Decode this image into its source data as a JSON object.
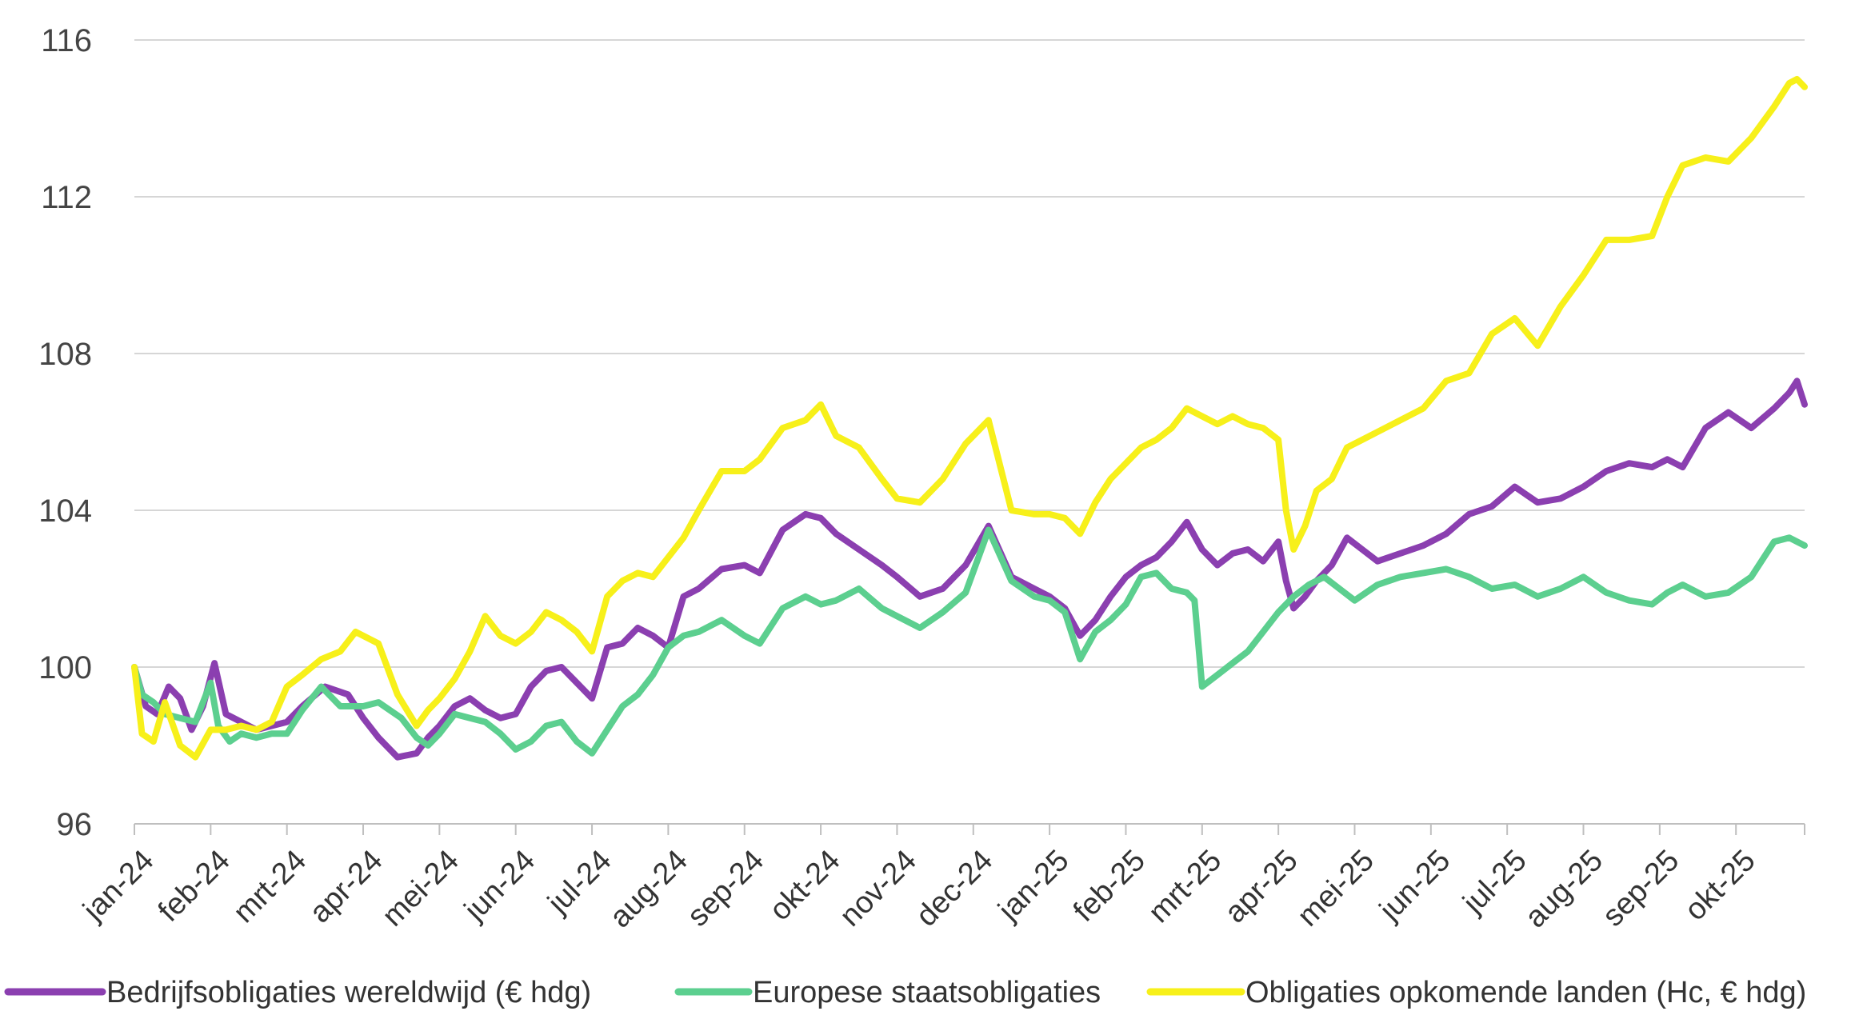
{
  "chart_data": {
    "type": "line",
    "title": "",
    "xlabel": "",
    "ylabel": "",
    "ylim": [
      96,
      116
    ],
    "yticks": [
      96,
      100,
      104,
      108,
      112,
      116
    ],
    "grid": true,
    "legend_position": "bottom",
    "categories": [
      "jan-24",
      "feb-24",
      "mrt-24",
      "apr-24",
      "mei-24",
      "jun-24",
      "jul-24",
      "aug-24",
      "sep-24",
      "okt-24",
      "nov-24",
      "dec-24",
      "jan-25",
      "feb-25",
      "mrt-25",
      "apr-25",
      "mei-25",
      "jun-25",
      "jul-25",
      "aug-25",
      "sep-25",
      "okt-25"
    ],
    "x_end": 21.9,
    "series": [
      {
        "name": "Bedrijfsobligaties wereldwijd (€ hdg)",
        "color": "#8b3fb0",
        "x": [
          0,
          0.15,
          0.3,
          0.45,
          0.6,
          0.75,
          0.9,
          1.05,
          1.2,
          1.4,
          1.6,
          1.8,
          2.0,
          2.2,
          2.5,
          2.8,
          3.0,
          3.2,
          3.45,
          3.7,
          3.85,
          4.0,
          4.2,
          4.4,
          4.6,
          4.8,
          5.0,
          5.2,
          5.4,
          5.6,
          5.8,
          6.0,
          6.2,
          6.4,
          6.6,
          6.8,
          7.0,
          7.2,
          7.4,
          7.7,
          8.0,
          8.2,
          8.5,
          8.8,
          9.0,
          9.2,
          9.5,
          9.8,
          10.0,
          10.3,
          10.6,
          10.9,
          11.2,
          11.5,
          11.8,
          12.0,
          12.2,
          12.4,
          12.6,
          12.8,
          13.0,
          13.2,
          13.4,
          13.6,
          13.8,
          14.0,
          14.2,
          14.4,
          14.6,
          14.8,
          15.0,
          15.1,
          15.2,
          15.35,
          15.5,
          15.7,
          15.9,
          16.1,
          16.3,
          16.6,
          16.9,
          17.2,
          17.5,
          17.8,
          18.1,
          18.4,
          18.7,
          19.0,
          19.3,
          19.6,
          19.9,
          20.1,
          20.3,
          20.6,
          20.9,
          21.2,
          21.5,
          21.7,
          21.8,
          21.9
        ],
        "values": [
          100.0,
          99.0,
          98.8,
          99.5,
          99.2,
          98.4,
          99.0,
          100.1,
          98.8,
          98.6,
          98.4,
          98.5,
          98.6,
          99.0,
          99.5,
          99.3,
          98.7,
          98.2,
          97.7,
          97.8,
          98.2,
          98.5,
          99.0,
          99.2,
          98.9,
          98.7,
          98.8,
          99.5,
          99.9,
          100.0,
          99.6,
          99.2,
          100.5,
          100.6,
          101.0,
          100.8,
          100.5,
          101.8,
          102.0,
          102.5,
          102.6,
          102.4,
          103.5,
          103.9,
          103.8,
          103.4,
          103.0,
          102.6,
          102.3,
          101.8,
          102.0,
          102.6,
          103.6,
          102.3,
          102.0,
          101.8,
          101.5,
          100.8,
          101.2,
          101.8,
          102.3,
          102.6,
          102.8,
          103.2,
          103.7,
          103.0,
          102.6,
          102.9,
          103.0,
          102.7,
          103.2,
          102.2,
          101.5,
          101.8,
          102.2,
          102.6,
          103.3,
          103.0,
          102.7,
          102.9,
          103.1,
          103.4,
          103.9,
          104.1,
          104.6,
          104.2,
          104.3,
          104.6,
          105.0,
          105.2,
          105.1,
          105.3,
          105.1,
          106.1,
          106.5,
          106.1,
          106.6,
          107.0,
          107.3,
          106.7
        ]
      },
      {
        "name": "Europese staatsobligaties",
        "color": "#5ccf8f",
        "x": [
          0,
          0.1,
          0.25,
          0.4,
          0.6,
          0.8,
          1.0,
          1.1,
          1.25,
          1.4,
          1.6,
          1.8,
          2.0,
          2.2,
          2.45,
          2.7,
          3.0,
          3.2,
          3.5,
          3.7,
          3.85,
          4.0,
          4.2,
          4.4,
          4.6,
          4.8,
          5.0,
          5.2,
          5.4,
          5.6,
          5.8,
          6.0,
          6.2,
          6.4,
          6.6,
          6.8,
          7.0,
          7.2,
          7.4,
          7.7,
          8.0,
          8.2,
          8.5,
          8.8,
          9.0,
          9.2,
          9.5,
          9.8,
          10.0,
          10.3,
          10.6,
          10.9,
          11.2,
          11.5,
          11.8,
          12.0,
          12.2,
          12.4,
          12.6,
          12.8,
          13.0,
          13.2,
          13.4,
          13.6,
          13.8,
          13.9,
          14.0,
          14.2,
          14.4,
          14.6,
          14.8,
          15.0,
          15.2,
          15.4,
          15.6,
          15.8,
          16.0,
          16.3,
          16.6,
          16.9,
          17.2,
          17.5,
          17.8,
          18.1,
          18.4,
          18.7,
          19.0,
          19.3,
          19.6,
          19.9,
          20.1,
          20.3,
          20.6,
          20.9,
          21.2,
          21.5,
          21.7,
          21.9
        ],
        "values": [
          100.0,
          99.3,
          99.1,
          98.8,
          98.7,
          98.6,
          99.6,
          98.5,
          98.1,
          98.3,
          98.2,
          98.3,
          98.3,
          98.9,
          99.5,
          99.0,
          99.0,
          99.1,
          98.7,
          98.2,
          98.0,
          98.3,
          98.8,
          98.7,
          98.6,
          98.3,
          97.9,
          98.1,
          98.5,
          98.6,
          98.1,
          97.8,
          98.4,
          99.0,
          99.3,
          99.8,
          100.5,
          100.8,
          100.9,
          101.2,
          100.8,
          100.6,
          101.5,
          101.8,
          101.6,
          101.7,
          102.0,
          101.5,
          101.3,
          101.0,
          101.4,
          101.9,
          103.5,
          102.2,
          101.8,
          101.7,
          101.4,
          100.2,
          100.9,
          101.2,
          101.6,
          102.3,
          102.4,
          102.0,
          101.9,
          101.7,
          99.5,
          99.8,
          100.1,
          100.4,
          100.9,
          101.4,
          101.8,
          102.1,
          102.3,
          102.0,
          101.7,
          102.1,
          102.3,
          102.4,
          102.5,
          102.3,
          102.0,
          102.1,
          101.8,
          102.0,
          102.3,
          101.9,
          101.7,
          101.6,
          101.9,
          102.1,
          101.8,
          101.9,
          102.3,
          103.2,
          103.3,
          103.1
        ]
      },
      {
        "name": "Obligaties opkomende landen (Hc, € hdg)",
        "color": "#f7f01a",
        "x": [
          0,
          0.1,
          0.25,
          0.4,
          0.6,
          0.8,
          1.0,
          1.2,
          1.4,
          1.6,
          1.8,
          2.0,
          2.2,
          2.45,
          2.7,
          2.9,
          3.0,
          3.2,
          3.45,
          3.7,
          3.85,
          4.0,
          4.2,
          4.4,
          4.6,
          4.8,
          5.0,
          5.2,
          5.4,
          5.6,
          5.8,
          6.0,
          6.2,
          6.4,
          6.6,
          6.8,
          7.0,
          7.2,
          7.4,
          7.7,
          8.0,
          8.2,
          8.5,
          8.8,
          9.0,
          9.2,
          9.5,
          9.8,
          10.0,
          10.3,
          10.6,
          10.9,
          11.2,
          11.5,
          11.8,
          12.0,
          12.2,
          12.4,
          12.6,
          12.8,
          13.0,
          13.2,
          13.4,
          13.6,
          13.8,
          14.0,
          14.2,
          14.4,
          14.6,
          14.8,
          15.0,
          15.1,
          15.2,
          15.35,
          15.5,
          15.7,
          15.9,
          16.1,
          16.3,
          16.6,
          16.9,
          17.2,
          17.5,
          17.8,
          18.1,
          18.4,
          18.7,
          19.0,
          19.3,
          19.6,
          19.9,
          20.1,
          20.3,
          20.6,
          20.9,
          21.2,
          21.5,
          21.7,
          21.8,
          21.9
        ],
        "values": [
          100.0,
          98.3,
          98.1,
          99.1,
          98.0,
          97.7,
          98.4,
          98.4,
          98.5,
          98.4,
          98.6,
          99.5,
          99.8,
          100.2,
          100.4,
          100.9,
          100.8,
          100.6,
          99.3,
          98.5,
          98.9,
          99.2,
          99.7,
          100.4,
          101.3,
          100.8,
          100.6,
          100.9,
          101.4,
          101.2,
          100.9,
          100.4,
          101.8,
          102.2,
          102.4,
          102.3,
          102.8,
          103.3,
          104.0,
          105.0,
          105.0,
          105.3,
          106.1,
          106.3,
          106.7,
          105.9,
          105.6,
          104.8,
          104.3,
          104.2,
          104.8,
          105.7,
          106.3,
          104.0,
          103.9,
          103.9,
          103.8,
          103.4,
          104.2,
          104.8,
          105.2,
          105.6,
          105.8,
          106.1,
          106.6,
          106.4,
          106.2,
          106.4,
          106.2,
          106.1,
          105.8,
          104.0,
          103.0,
          103.6,
          104.5,
          104.8,
          105.6,
          105.8,
          106.0,
          106.3,
          106.6,
          107.3,
          107.5,
          108.5,
          108.9,
          108.2,
          109.2,
          110.0,
          110.9,
          110.9,
          111.0,
          112.0,
          112.8,
          113.0,
          112.9,
          113.5,
          114.3,
          114.9,
          115.0,
          114.8
        ]
      }
    ]
  }
}
